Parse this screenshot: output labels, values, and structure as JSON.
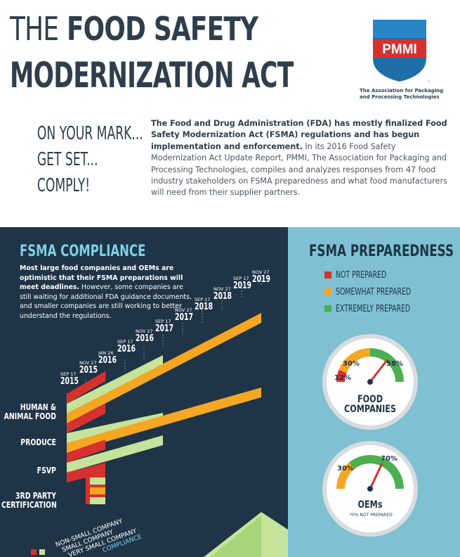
{
  "header": {
    "title_thin": "THE",
    "title_bold": "FOOD SAFETY",
    "title_line2": "MODERNIZATION ACT",
    "logo_text": "PMMI",
    "logo_tm": "TM",
    "logo_tagline": "The Association for Packaging and Processing Technologies"
  },
  "tagline": [
    "ON YOUR MARK...",
    "GET SET...",
    "COMPLY!"
  ],
  "intro": {
    "bold": "The Food and Drug Administration (FDA) has mostly finalized Food Safety Modernization Act (FSMA) regulations and has begun implementation and enforcement.",
    "normal": " In its 2016 Food Safety Modernization Act Update Report, PMMI, The Association for Packaging and Processing Technologies, compiles and analyzes responses from 47 food industry stakeholders on FSMA preparedness and what food manufacturers will need from their supplier partners."
  },
  "compliance": {
    "title": "FSMA COMPLIANCE",
    "text_bold": "Most large food companies and OEMs are optimistic that their FSMA preparations will meet deadlines.",
    "text_normal": " However, some companies are still waiting for additional FDA guidance documents, and smaller companies are still working to better understand the regulations.",
    "dates": [
      {
        "m": "SEP 17",
        "y": "2015"
      },
      {
        "m": "NOV 27",
        "y": "2015"
      },
      {
        "m": "JAN 26",
        "y": "2016"
      },
      {
        "m": "SEP 17",
        "y": "2016"
      },
      {
        "m": "NOV 27",
        "y": "2016"
      },
      {
        "m": "SEP 17",
        "y": "2017"
      },
      {
        "m": "NOV 27",
        "y": "2017"
      },
      {
        "m": "SEP 17",
        "y": "2018"
      },
      {
        "m": "NOV 27",
        "y": "2018"
      },
      {
        "m": "SEP 17",
        "y": "2019"
      },
      {
        "m": "NOV 27",
        "y": "2019"
      }
    ],
    "rows": [
      "HUMAN & ANIMAL FOOD",
      "PRODUCE",
      "FSVP",
      "3RD PARTY CERTIFICATION"
    ],
    "legend": [
      "NON-SMALL COMPANY",
      "SMALL COMPANY",
      "VERY SMALL COMPANY",
      "COMPLIANCE"
    ],
    "colors": {
      "red": "#d7312f",
      "green": "#c5e39b",
      "orange": "#f5a623"
    }
  },
  "preparedness": {
    "title": "FSMA PREPAREDNESS",
    "legend": [
      {
        "label": "NOT PREPARED",
        "color": "#d7312f"
      },
      {
        "label": "SOMEWHAT PREPARED",
        "color": "#f5a623"
      },
      {
        "label": "EXTREMELY PREPARED",
        "color": "#4caf50"
      }
    ],
    "food": {
      "not": "12%",
      "somewhat": "30%",
      "extremely": "58%",
      "label1": "FOOD",
      "label2": "COMPANIES"
    },
    "oem": {
      "somewhat": "30%",
      "extremely": "70%",
      "label": "OEMs",
      "note": "*0% NOT PREPARED"
    }
  }
}
